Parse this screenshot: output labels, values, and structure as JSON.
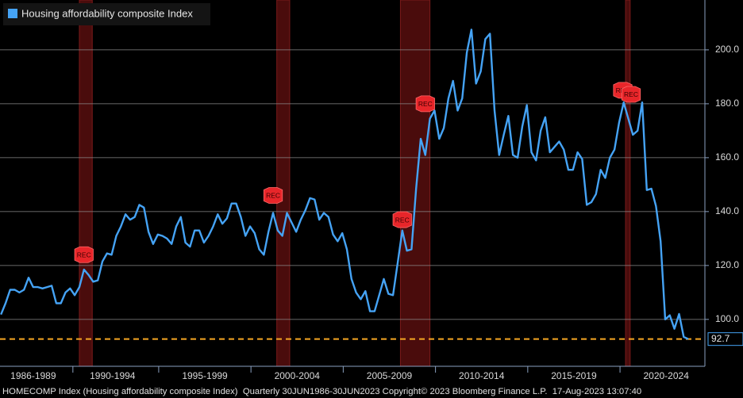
{
  "chart_data": {
    "type": "line",
    "legend_label": "Housing affordability composite Index",
    "footer": "HOMECOMP Index (Housing affordability composite Index)  Quarterly 30JUN1986-30JUN2023 Copyright© 2023 Bloomberg Finance L.P.  17-Aug-2023 13:07:40",
    "color": "#45a3f5",
    "x": [
      1986.25,
      1986.5,
      1986.75,
      1987,
      1987.25,
      1987.5,
      1987.75,
      1988,
      1988.25,
      1988.5,
      1988.75,
      1989,
      1989.25,
      1989.5,
      1989.75,
      1990,
      1990.25,
      1990.5,
      1990.75,
      1991,
      1991.25,
      1991.5,
      1991.75,
      1992,
      1992.25,
      1992.5,
      1992.75,
      1993,
      1993.25,
      1993.5,
      1993.75,
      1994,
      1994.25,
      1994.5,
      1994.75,
      1995,
      1995.25,
      1995.5,
      1995.75,
      1996,
      1996.25,
      1996.5,
      1996.75,
      1997,
      1997.25,
      1997.5,
      1997.75,
      1998,
      1998.25,
      1998.5,
      1998.75,
      1999,
      1999.25,
      1999.5,
      1999.75,
      2000,
      2000.25,
      2000.5,
      2000.75,
      2001,
      2001.25,
      2001.5,
      2001.75,
      2002,
      2002.25,
      2002.5,
      2002.75,
      2003,
      2003.25,
      2003.5,
      2003.75,
      2004,
      2004.25,
      2004.5,
      2004.75,
      2005,
      2005.25,
      2005.5,
      2005.75,
      2006,
      2006.25,
      2006.5,
      2006.75,
      2007,
      2007.25,
      2007.5,
      2007.75,
      2008,
      2008.25,
      2008.5,
      2008.75,
      2009,
      2009.25,
      2009.5,
      2009.75,
      2010,
      2010.25,
      2010.5,
      2010.75,
      2011,
      2011.25,
      2011.5,
      2011.75,
      2012,
      2012.25,
      2012.5,
      2012.75,
      2013,
      2013.25,
      2013.5,
      2013.75,
      2014,
      2014.25,
      2014.5,
      2014.75,
      2015,
      2015.25,
      2015.5,
      2015.75,
      2016,
      2016.25,
      2016.5,
      2016.75,
      2017,
      2017.25,
      2017.5,
      2017.75,
      2018,
      2018.25,
      2018.5,
      2018.75,
      2019,
      2019.25,
      2019.5,
      2019.75,
      2020,
      2020.25,
      2020.5,
      2020.75,
      2021,
      2021.25,
      2021.5,
      2021.75,
      2022,
      2022.25,
      2022.5,
      2022.75,
      2023,
      2023.25,
      2023.5
    ],
    "values": [
      101.8,
      106,
      111,
      111,
      110,
      111,
      115.5,
      112,
      112,
      111.5,
      112,
      112.5,
      106,
      106,
      110,
      111.5,
      109,
      112,
      118.5,
      116.5,
      114,
      114.5,
      121.5,
      124.5,
      124,
      131,
      134.5,
      139,
      137,
      138,
      142.5,
      141.5,
      132.5,
      128,
      131.5,
      131,
      130,
      128,
      134.5,
      138,
      128.5,
      127,
      133,
      133,
      128.5,
      131,
      134.5,
      139,
      135.5,
      137.5,
      143,
      143,
      138,
      131,
      134.5,
      132,
      126,
      124,
      132.5,
      139.5,
      133,
      131,
      139.5,
      136,
      132.5,
      137,
      140.5,
      145,
      144.5,
      137,
      139.5,
      138,
      131.5,
      129,
      132,
      126,
      115,
      110,
      107.5,
      110.5,
      103,
      103,
      109,
      115,
      109.5,
      109,
      121,
      133,
      125.5,
      126,
      148.5,
      167,
      161,
      174.5,
      177.5,
      167,
      171,
      182,
      188.5,
      177.5,
      182,
      199,
      207.5,
      187.5,
      192,
      204,
      206,
      177.5,
      161,
      168.5,
      175.5,
      161,
      160,
      171.5,
      179.5,
      162,
      159,
      170,
      175,
      162,
      164,
      166,
      163,
      155.5,
      155.5,
      162,
      159.5,
      142.5,
      143.5,
      146.5,
      155.5,
      152.5,
      160,
      163,
      173,
      180.5,
      174.5,
      168.5,
      170,
      180.5,
      148,
      148.5,
      142,
      129,
      100,
      101.5,
      96.5,
      102,
      93.5,
      92.7
    ],
    "xlim": [
      1986.2,
      2024.4
    ],
    "ylim": [
      82.6,
      218.5
    ],
    "xticks": [
      {
        "value": 1988,
        "label": "1986-1989"
      },
      {
        "value": 1992.3,
        "label": "1990-1994"
      },
      {
        "value": 1997.3,
        "label": "1995-1999"
      },
      {
        "value": 2002.3,
        "label": "2000-2004"
      },
      {
        "value": 2007.3,
        "label": "2005-2009"
      },
      {
        "value": 2012.3,
        "label": "2010-2014"
      },
      {
        "value": 2017.3,
        "label": "2015-2019"
      },
      {
        "value": 2022.3,
        "label": "2020-2024"
      }
    ],
    "yticks": [
      {
        "value": 100,
        "label": "100.0"
      },
      {
        "value": 120,
        "label": "120.0"
      },
      {
        "value": 140,
        "label": "140.0"
      },
      {
        "value": 160,
        "label": "160.0"
      },
      {
        "value": 180,
        "label": "180.0"
      },
      {
        "value": 200,
        "label": "200.0"
      }
    ],
    "grid": true,
    "recessions": [
      [
        1990.5,
        1991.2
      ],
      [
        2001.2,
        2001.9
      ],
      [
        2007.9,
        2009.5
      ],
      [
        2020.1,
        2020.35
      ]
    ],
    "annotations": [
      {
        "x": 1990.75,
        "y": 124,
        "label": "REC"
      },
      {
        "x": 2001,
        "y": 146,
        "label": "REC"
      },
      {
        "x": 2008,
        "y": 137,
        "label": "REC"
      },
      {
        "x": 2009.25,
        "y": 180,
        "label": "REC"
      },
      {
        "x": 2019.95,
        "y": 185,
        "label": "REC"
      },
      {
        "x": 2020.4,
        "y": 183.5,
        "label": "REC"
      }
    ],
    "reference_line": {
      "value": 92.7,
      "color": "#f5a623"
    }
  }
}
